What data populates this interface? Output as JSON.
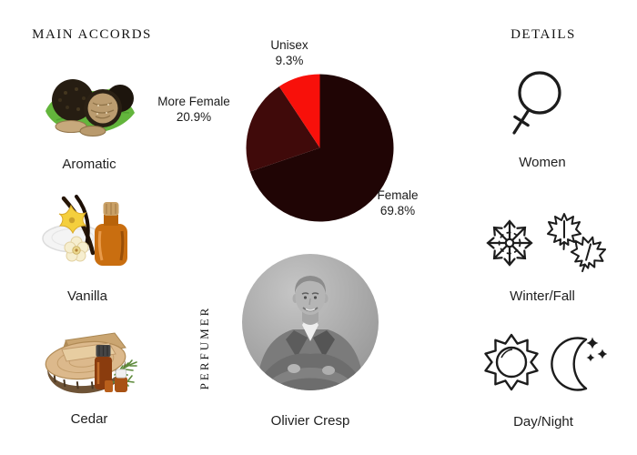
{
  "page": {
    "background": "#ffffff",
    "text_color": "#1f1f1f"
  },
  "main_accords": {
    "title": "MAIN ACCORDS",
    "items": [
      {
        "label": "Aromatic",
        "image": "black-truffles-on-green-leaf-photo"
      },
      {
        "label": "Vanilla",
        "image": "vanilla-flowers-pods-amber-bottle-photo"
      },
      {
        "label": "Cedar",
        "image": "cedar-wood-slice-oil-bottles-sprig-photo"
      }
    ]
  },
  "chart_data": {
    "type": "pie",
    "title": "",
    "start_angle_deg": 0,
    "direction": "clockwise",
    "legend_position": "outside-labels",
    "slices": [
      {
        "label": "Female",
        "value": 69.8,
        "pct_text": "69.8%",
        "color": "#200505"
      },
      {
        "label": "More Female",
        "value": 20.9,
        "pct_text": "20.9%",
        "color": "#400a0a"
      },
      {
        "label": "Unisex",
        "value": 9.3,
        "pct_text": "9.3%",
        "color": "#f8100a"
      }
    ]
  },
  "perfumer": {
    "section_label": "PERFUMER",
    "name": "Olivier Cresp",
    "photo": "olivier-cresp-black-and-white-portrait"
  },
  "details": {
    "title": "DETAILS",
    "items": [
      {
        "label": "Women",
        "icons": [
          "female-symbol-icon"
        ]
      },
      {
        "label": "Winter/Fall",
        "icons": [
          "snowflake-icon",
          "maple-leaf-icon",
          "maple-leaf-icon"
        ]
      },
      {
        "label": "Day/Night",
        "icons": [
          "sun-icon",
          "crescent-moon-stars-icon"
        ]
      }
    ]
  }
}
